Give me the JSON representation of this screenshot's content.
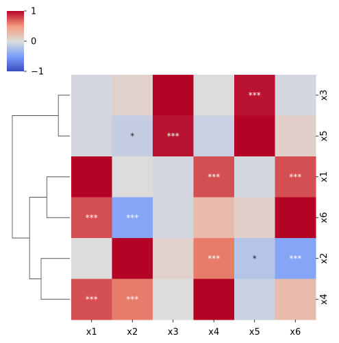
{
  "chart_data": {
    "type": "heatmap",
    "title": "",
    "xlabel": "",
    "ylabel": "",
    "columns": [
      "x1",
      "x2",
      "x3",
      "x4",
      "x5",
      "x6"
    ],
    "rows": [
      "x3",
      "x5",
      "x1",
      "x6",
      "x2",
      "x4"
    ],
    "values": [
      [
        -0.05,
        0.08,
        1.0,
        0.0,
        0.95,
        -0.05
      ],
      [
        -0.05,
        -0.12,
        0.95,
        -0.1,
        1.0,
        0.1
      ],
      [
        1.0,
        0.0,
        -0.05,
        0.75,
        -0.05,
        0.75
      ],
      [
        0.75,
        -0.45,
        -0.05,
        0.25,
        0.1,
        1.0
      ],
      [
        0.0,
        1.0,
        0.08,
        0.6,
        -0.2,
        -0.45
      ],
      [
        0.75,
        0.6,
        0.0,
        1.0,
        -0.1,
        0.25
      ]
    ],
    "annotations": [
      [
        "",
        "",
        "",
        "",
        "***",
        ""
      ],
      [
        "",
        "*",
        "***",
        "",
        "",
        ""
      ],
      [
        "",
        "",
        "",
        "***",
        "",
        "***"
      ],
      [
        "***",
        "***",
        "",
        "",
        "",
        ""
      ],
      [
        "",
        "",
        "",
        "***",
        "*",
        "***"
      ],
      [
        "***",
        "***",
        "",
        "",
        "",
        ""
      ]
    ],
    "colormap": "coolwarm",
    "vmin": -1,
    "vmax": 1,
    "colorbar": {
      "ticks": [
        "1",
        "0",
        "−1"
      ],
      "tick_values": [
        1,
        0,
        -1
      ],
      "placement": "top-left"
    },
    "row_dendrogram": {
      "placement": "left",
      "merges": [
        {
          "a": "x3",
          "b": "x5",
          "height": 0.2
        },
        {
          "a": "x1",
          "b": "x6",
          "height": 0.4
        },
        {
          "a": "x2",
          "b": "x4",
          "height": 0.5
        },
        {
          "a": "x1+x6",
          "b": "x2+x4",
          "height": 0.7
        },
        {
          "a": "x3+x5",
          "b": "x1+x6+x2+x4",
          "height": 1.0
        }
      ]
    },
    "colors": {
      "dendrogram_line": "#555555",
      "annotation_text": "#ffffff",
      "annotation_text_light": "#222222"
    }
  }
}
